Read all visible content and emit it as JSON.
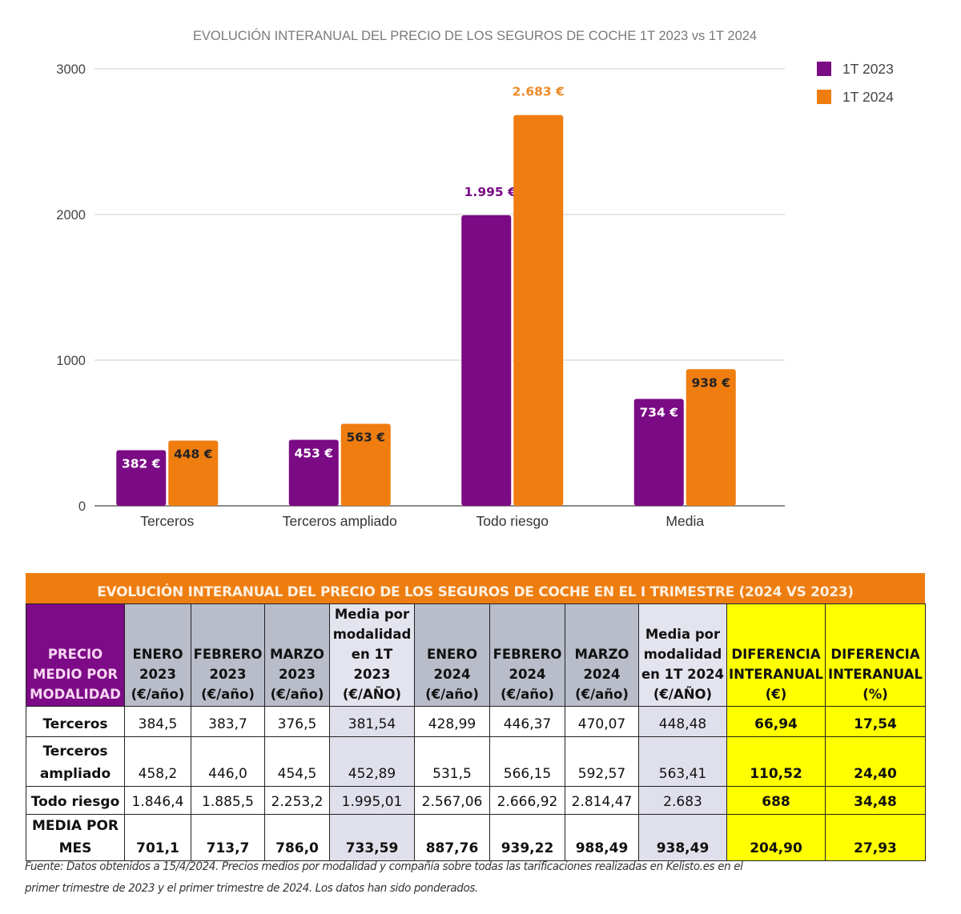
{
  "chart_data": {
    "type": "bar",
    "title": "EVOLUCIÓN INTERANUAL DEL PRECIO DE LOS SEGUROS DE COCHE 1T 2023 vs 1T 2024",
    "xlabel": "",
    "ylabel": "",
    "categories": [
      "Terceros",
      "Terceros ampliado",
      "Todo riesgo",
      "Media"
    ],
    "series": [
      {
        "name": "1T 2023",
        "color": "#7b0a85",
        "values": [
          382,
          453,
          1995,
          734
        ],
        "labels": [
          "382 €",
          "453 €",
          "1.995 €",
          "734 €"
        ]
      },
      {
        "name": "1T 2024",
        "color": "#ef7d10",
        "values": [
          448,
          563,
          2683,
          938
        ],
        "labels": [
          "448 €",
          "563 €",
          "2.683 €",
          "938 €"
        ]
      }
    ],
    "ylim": [
      0,
      3000
    ],
    "yticks": [
      0,
      1000,
      2000,
      3000
    ],
    "grid": true,
    "legend": "top-right"
  },
  "table": {
    "title": "EVOLUCIÓN INTERANUAL DEL PRECIO DE LOS SEGUROS DE COCHE EN EL I TRIMESTRE (2024 VS 2023)",
    "headers": [
      [
        "PRECIO",
        "MEDIO POR",
        "MODALIDAD"
      ],
      [
        "ENERO",
        "2023",
        "(€/año)"
      ],
      [
        "FEBRERO",
        "2023",
        "(€/año)"
      ],
      [
        "MARZO",
        "2023",
        "(€/año)"
      ],
      [
        "Media por",
        "modalidad",
        "en 1T 2023",
        "(€/AÑO)"
      ],
      [
        "ENERO",
        "2024",
        "(€/año)"
      ],
      [
        "FEBRERO",
        "2024",
        "(€/año)"
      ],
      [
        "MARZO",
        "2024",
        "(€/año)"
      ],
      [
        "Media por",
        "modalidad",
        "en 1T 2024",
        "(€/AÑO)"
      ],
      [
        "DIFERENCIA",
        "INTERANUAL",
        "(€)"
      ],
      [
        "DIFERENCIA",
        "INTERANUAL",
        "(%)"
      ]
    ],
    "rows": [
      {
        "label": [
          "Terceros"
        ],
        "cells": [
          "384,5",
          "383,7",
          "376,5",
          "381,54",
          "428,99",
          "446,37",
          "470,07",
          "448,48",
          "66,94",
          "17,54"
        ]
      },
      {
        "label": [
          "Terceros",
          "ampliado"
        ],
        "cells": [
          "458,2",
          "446,0",
          "454,5",
          "452,89",
          "531,5",
          "566,15",
          "592,57",
          "563,41",
          "110,52",
          "24,40"
        ]
      },
      {
        "label": [
          "Todo riesgo"
        ],
        "cells": [
          "1.846,4",
          "1.885,5",
          "2.253,2",
          "1.995,01",
          "2.567,06",
          "2.666,92",
          "2.814,47",
          "2.683",
          "688",
          "34,48"
        ]
      },
      {
        "label": [
          "MEDIA POR",
          "MES"
        ],
        "cells": [
          "701,1",
          "713,7",
          "786,0",
          "733,59",
          "887,76",
          "939,22",
          "988,49",
          "938,49",
          "204,90",
          "27,93"
        ]
      }
    ]
  },
  "source": {
    "line1": "Fuente: Datos obtenidos a 15/4/2024. Precios medios por modalidad y compañía sobre todas las tarificaciones realizadas en Kelisto.es en el",
    "line2": "primer trimestre de 2023 y el primer trimestre de 2024. Los datos han sido ponderados."
  }
}
